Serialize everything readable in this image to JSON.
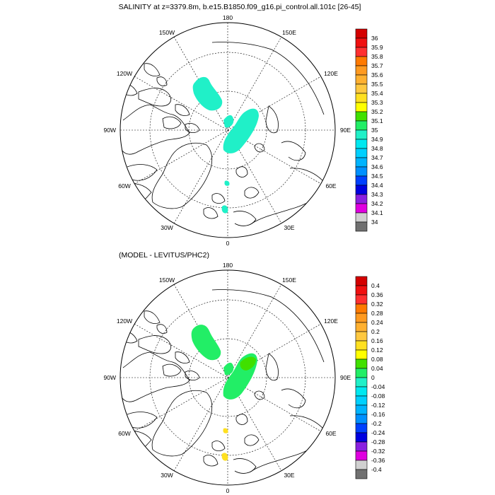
{
  "title": "SALINITY at z=3379.8m, b.e15.B1850.f09_g16.pi_control.all.101c [26-45]",
  "subtitle": "(MODEL - LEVITUS/PHC2)",
  "lon_labels": {
    "top": "180",
    "bottom": "0",
    "left": "90W",
    "right": "90E",
    "upper_left": "150W",
    "upper_right": "150E",
    "mid_left": "120W",
    "mid_right": "120E",
    "lower_left": "60W",
    "lower_right": "60E",
    "bottom_left": "30W",
    "bottom_right": "30E"
  },
  "colorbar_top": {
    "labels": [
      "36",
      "35.9",
      "35.8",
      "35.7",
      "35.6",
      "35.5",
      "35.4",
      "35.3",
      "35.2",
      "35.1",
      "35",
      "34.9",
      "34.8",
      "34.7",
      "34.6",
      "34.5",
      "34.4",
      "34.3",
      "34.2",
      "34.1",
      "34"
    ],
    "colors": [
      "#d40000",
      "#f01010",
      "#ff3030",
      "#ff7a00",
      "#ff9a20",
      "#ffb030",
      "#ffc840",
      "#ffe020",
      "#ffff00",
      "#40e000",
      "#22ee66",
      "#20f0c8",
      "#00e8f0",
      "#00d0ff",
      "#00b4ff",
      "#0090ff",
      "#0040ff",
      "#0000e0",
      "#8a20e0",
      "#e000e0",
      "#d0d0d0",
      "#707070"
    ]
  },
  "colorbar_bottom": {
    "labels": [
      "0.4",
      "0.36",
      "0.32",
      "0.28",
      "0.24",
      "0.2",
      "0.16",
      "0.12",
      "0.08",
      "0.04",
      "0",
      "-0.04",
      "-0.08",
      "-0.12",
      "-0.16",
      "-0.2",
      "-0.24",
      "-0.28",
      "-0.32",
      "-0.36",
      "-0.4"
    ],
    "colors": [
      "#d40000",
      "#f01010",
      "#ff3030",
      "#ff7a00",
      "#ff9a20",
      "#ffb030",
      "#ffc840",
      "#ffe020",
      "#ffff00",
      "#40e000",
      "#22ee66",
      "#20f0c8",
      "#00e8f0",
      "#00d0ff",
      "#00b4ff",
      "#0090ff",
      "#0040ff",
      "#0000e0",
      "#8a20e0",
      "#e000e0",
      "#d0d0d0",
      "#707070"
    ]
  },
  "colors": {
    "top_field": "#20f0c8",
    "bottom_field": "#22ee66",
    "bottom_positive": "#ffe020",
    "coast": "#000000",
    "grid": "#000000"
  }
}
